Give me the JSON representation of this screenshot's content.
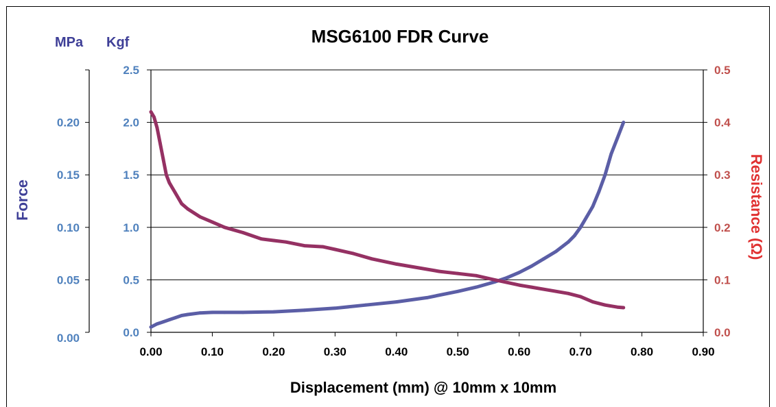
{
  "chart_data": {
    "type": "line",
    "title": "MSG6100 FDR Curve",
    "xlabel": "Displacement (mm) @ 10mm x 10mm",
    "xlim": [
      0,
      0.9
    ],
    "xticks": [
      "0.00",
      "0.10",
      "0.20",
      "0.30",
      "0.40",
      "0.50",
      "0.60",
      "0.70",
      "0.80",
      "0.90"
    ],
    "y_left": {
      "label": "Force",
      "unit_kgf": "Kgf",
      "unit_mpa": "MPa",
      "ylim": [
        0,
        2.5
      ],
      "ticks_kgf": [
        "0.0",
        "0.5",
        "1.0",
        "1.5",
        "2.0",
        "2.5"
      ],
      "ticks_mpa": [
        "0.00",
        "0.05",
        "0.10",
        "0.15",
        "0.20"
      ]
    },
    "y_right": {
      "label": "Resistance (Ω)",
      "ylim": [
        0,
        0.5
      ],
      "ticks": [
        "0.0",
        "0.1",
        "0.2",
        "0.3",
        "0.4",
        "0.5"
      ]
    },
    "grid": "horizontal",
    "series": [
      {
        "axis": "left",
        "color": "#5B5EA6",
        "x": [
          0.0,
          0.01,
          0.02,
          0.03,
          0.04,
          0.05,
          0.06,
          0.08,
          0.1,
          0.12,
          0.15,
          0.2,
          0.25,
          0.3,
          0.35,
          0.4,
          0.45,
          0.5,
          0.53,
          0.56,
          0.58,
          0.6,
          0.62,
          0.64,
          0.66,
          0.68,
          0.69,
          0.7,
          0.71,
          0.72,
          0.73,
          0.74,
          0.75,
          0.76,
          0.77
        ],
        "values": [
          0.05,
          0.08,
          0.1,
          0.12,
          0.14,
          0.16,
          0.17,
          0.185,
          0.19,
          0.19,
          0.19,
          0.195,
          0.21,
          0.23,
          0.26,
          0.29,
          0.33,
          0.39,
          0.43,
          0.48,
          0.52,
          0.57,
          0.63,
          0.7,
          0.77,
          0.86,
          0.92,
          1.0,
          1.1,
          1.2,
          1.34,
          1.5,
          1.7,
          1.85,
          2.0
        ]
      },
      {
        "axis": "right",
        "color": "#953163",
        "x": [
          0.0,
          0.005,
          0.01,
          0.015,
          0.02,
          0.025,
          0.03,
          0.04,
          0.05,
          0.06,
          0.08,
          0.1,
          0.12,
          0.15,
          0.18,
          0.2,
          0.22,
          0.25,
          0.28,
          0.3,
          0.33,
          0.36,
          0.4,
          0.44,
          0.47,
          0.5,
          0.53,
          0.56,
          0.58,
          0.6,
          0.62,
          0.65,
          0.68,
          0.7,
          0.72,
          0.74,
          0.76,
          0.77
        ],
        "values": [
          0.42,
          0.41,
          0.39,
          0.36,
          0.33,
          0.3,
          0.285,
          0.265,
          0.245,
          0.235,
          0.22,
          0.21,
          0.2,
          0.19,
          0.178,
          0.175,
          0.172,
          0.165,
          0.163,
          0.158,
          0.15,
          0.14,
          0.13,
          0.122,
          0.116,
          0.112,
          0.108,
          0.1,
          0.095,
          0.09,
          0.086,
          0.08,
          0.074,
          0.068,
          0.058,
          0.052,
          0.048,
          0.047
        ]
      }
    ]
  }
}
